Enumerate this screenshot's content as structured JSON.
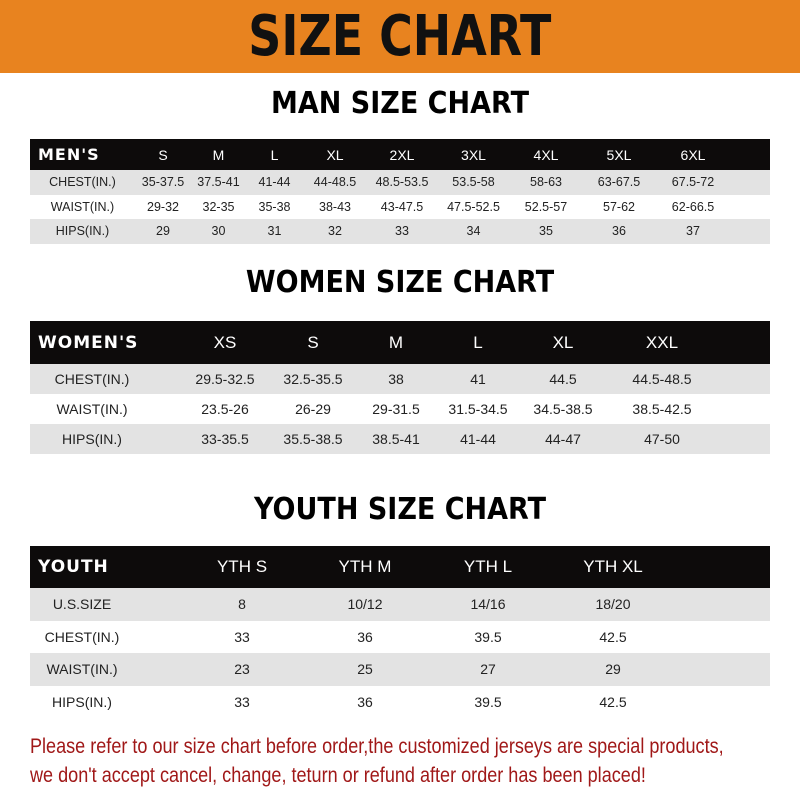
{
  "banner": {
    "title": "SIZE CHART",
    "color": "#e8831f"
  },
  "tables": {
    "men": {
      "title": "MAN SIZE CHART",
      "header": [
        "MEN'S",
        "S",
        "M",
        "L",
        "XL",
        "2XL",
        "3XL",
        "4XL",
        "5XL",
        "6XL"
      ],
      "rows": [
        [
          "CHEST(IN.)",
          "35-37.5",
          "37.5-41",
          "41-44",
          "44-48.5",
          "48.5-53.5",
          "53.5-58",
          "58-63",
          "63-67.5",
          "67.5-72"
        ],
        [
          "WAIST(IN.)",
          "29-32",
          "32-35",
          "35-38",
          "38-43",
          "43-47.5",
          "47.5-52.5",
          "52.5-57",
          "57-62",
          "62-66.5"
        ],
        [
          "HIPS(IN.)",
          "29",
          "30",
          "31",
          "32",
          "33",
          "34",
          "35",
          "36",
          "37"
        ]
      ],
      "shading": [
        "gray",
        "white",
        "gray"
      ]
    },
    "women": {
      "title": "WOMEN SIZE CHART",
      "header": [
        "WOMEN'S",
        "XS",
        "S",
        "M",
        "L",
        "XL",
        "XXL"
      ],
      "rows": [
        [
          "CHEST(IN.)",
          "29.5-32.5",
          "32.5-35.5",
          "38",
          "41",
          "44.5",
          "44.5-48.5"
        ],
        [
          "WAIST(IN.)",
          "23.5-26",
          "26-29",
          "29-31.5",
          "31.5-34.5",
          "34.5-38.5",
          "38.5-42.5"
        ],
        [
          "HIPS(IN.)",
          "33-35.5",
          "35.5-38.5",
          "38.5-41",
          "41-44",
          "44-47",
          "47-50"
        ]
      ],
      "shading": [
        "gray",
        "white",
        "gray"
      ]
    },
    "youth": {
      "title": "YOUTH SIZE CHART",
      "header": [
        "YOUTH",
        "YTH S",
        "YTH M",
        "YTH L",
        "YTH XL"
      ],
      "rows": [
        [
          "U.S.SIZE",
          "8",
          "10/12",
          "14/16",
          "18/20"
        ],
        [
          "CHEST(IN.)",
          "33",
          "36",
          "39.5",
          "42.5"
        ],
        [
          "WAIST(IN.)",
          "23",
          "25",
          "27",
          "29"
        ],
        [
          "HIPS(IN.)",
          "33",
          "36",
          "39.5",
          "42.5"
        ]
      ],
      "shading": [
        "gray",
        "white",
        "gray",
        "white"
      ]
    }
  },
  "notice": {
    "line1": "Please refer to our size chart before order,the customized jerseys are special products,",
    "line2": "we don't accept cancel, change, teturn or refund after order has been placed!",
    "color": "#a01818"
  }
}
